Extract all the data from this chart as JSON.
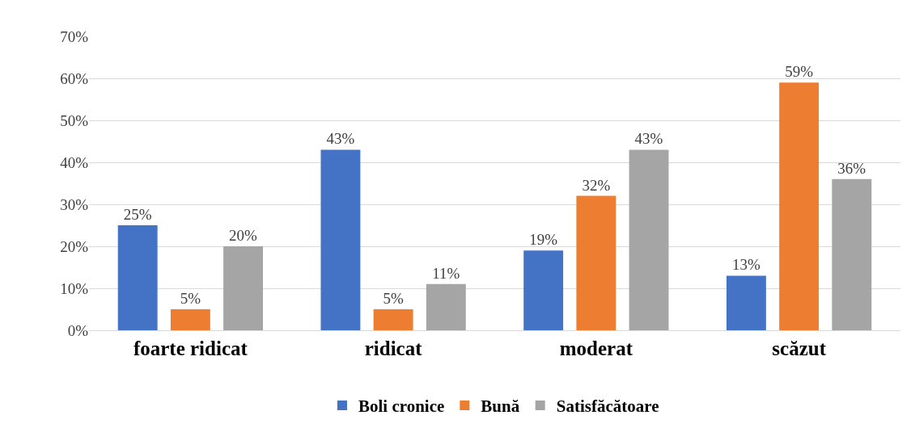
{
  "chart_data": {
    "type": "bar",
    "categories": [
      "foarte ridicat",
      "ridicat",
      "moderat",
      "scăzut"
    ],
    "series": [
      {
        "name": "Boli cronice",
        "color": "#4472c4",
        "values": [
          25,
          43,
          19,
          13
        ],
        "value_labels": [
          "25%",
          "43%",
          "19%",
          "13%"
        ]
      },
      {
        "name": "Bună",
        "color": "#ed7d31",
        "values": [
          5,
          5,
          32,
          59
        ],
        "value_labels": [
          "5%",
          "5%",
          "32%",
          "59%"
        ]
      },
      {
        "name": "Satisfăcătoare",
        "color": "#a5a5a5",
        "values": [
          20,
          11,
          43,
          36
        ],
        "value_labels": [
          "20%",
          "11%",
          "43%",
          "36%"
        ]
      }
    ],
    "ylim": [
      0,
      70
    ],
    "yticks": [
      {
        "value": 0,
        "label": "0%"
      },
      {
        "value": 10,
        "label": "10%"
      },
      {
        "value": 20,
        "label": "20%"
      },
      {
        "value": 30,
        "label": "30%"
      },
      {
        "value": 40,
        "label": "40%"
      },
      {
        "value": 50,
        "label": "50%"
      },
      {
        "value": 60,
        "label": "60%"
      },
      {
        "value": 70,
        "label": "70%"
      }
    ],
    "grid": "y",
    "legend": "bottom"
  }
}
